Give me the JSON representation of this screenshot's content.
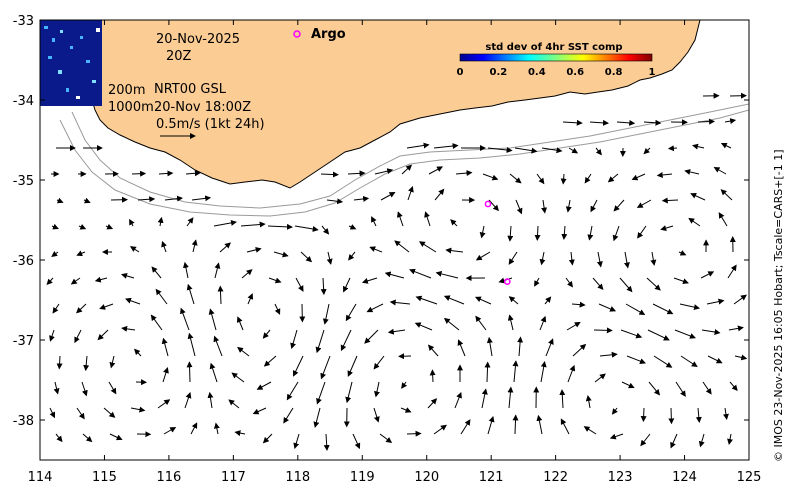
{
  "map": {
    "date_label": "20-Nov-2025",
    "time_label": "20Z",
    "argo_label": "Argo",
    "contour_200": "200m",
    "contour_1000": "1000m",
    "product_label": "NRT00 GSL",
    "product_time": "20-Nov 18:00Z",
    "scale_label": "0.5m/s (1kt 24h)",
    "colorbar_title": "std dev of 4hr SST comp",
    "colorbar_ticks": [
      "0",
      "0.2",
      "0.4",
      "0.6",
      "0.8",
      "1"
    ],
    "credit": "© IMOS 23-Nov-2025 16:05 Hobart; Tscale=CARS+[-1 1]",
    "x_ticks": [
      "114",
      "115",
      "116",
      "117",
      "118",
      "119",
      "120",
      "121",
      "122",
      "123",
      "124",
      "125"
    ],
    "y_ticks": [
      "-33",
      "-34",
      "-35",
      "-36",
      "-37",
      "-38"
    ],
    "land_color": "#fccc95",
    "argo_color": "#ff00ff",
    "argo_floats": [
      {
        "lon": 120.95,
        "lat": -35.3
      },
      {
        "lon": 121.25,
        "lat": -36.27
      }
    ]
  }
}
